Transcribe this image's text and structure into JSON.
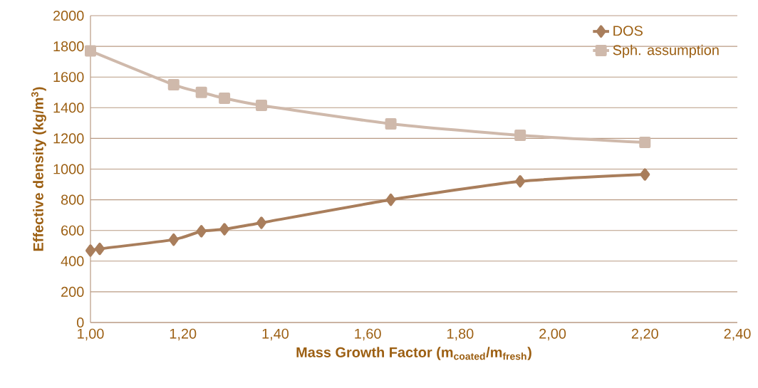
{
  "chart_data": {
    "type": "line",
    "xlabel": "Mass Growth Factor (m$_{coated}$/m$_{fresh}$)",
    "ylabel": "Effective density (kg/m$^{3}$)",
    "x": [
      1.0,
      1.02,
      1.18,
      1.24,
      1.29,
      1.37,
      1.65,
      1.93,
      2.2
    ],
    "series": [
      {
        "name": "DOS",
        "color": "#a97e5c",
        "marker": "diamond",
        "values": [
          469,
          480,
          540,
          595,
          608,
          650,
          800,
          920,
          965
        ]
      },
      {
        "name": "Sph. assumption",
        "color": "#cfb9ab",
        "marker": "square",
        "values": [
          1770,
          null,
          1550,
          1500,
          1462,
          1415,
          1295,
          1220,
          1174
        ]
      }
    ],
    "xlim": [
      1.0,
      2.4
    ],
    "xticks": [
      {
        "value": 1.0,
        "label": "1,00"
      },
      {
        "value": 1.2,
        "label": "1,20"
      },
      {
        "value": 1.4,
        "label": "1,40"
      },
      {
        "value": 1.6,
        "label": "1,60"
      },
      {
        "value": 1.8,
        "label": "1,80"
      },
      {
        "value": 2.0,
        "label": "2,00"
      },
      {
        "value": 2.2,
        "label": "2,20"
      },
      {
        "value": 2.4,
        "label": "2,40"
      }
    ],
    "ylim": [
      0,
      2000
    ],
    "yticks": [
      0,
      200,
      400,
      600,
      800,
      1000,
      1200,
      1400,
      1600,
      1800,
      2000
    ],
    "grid": "y",
    "legend": "top right",
    "line_style": "solid"
  }
}
